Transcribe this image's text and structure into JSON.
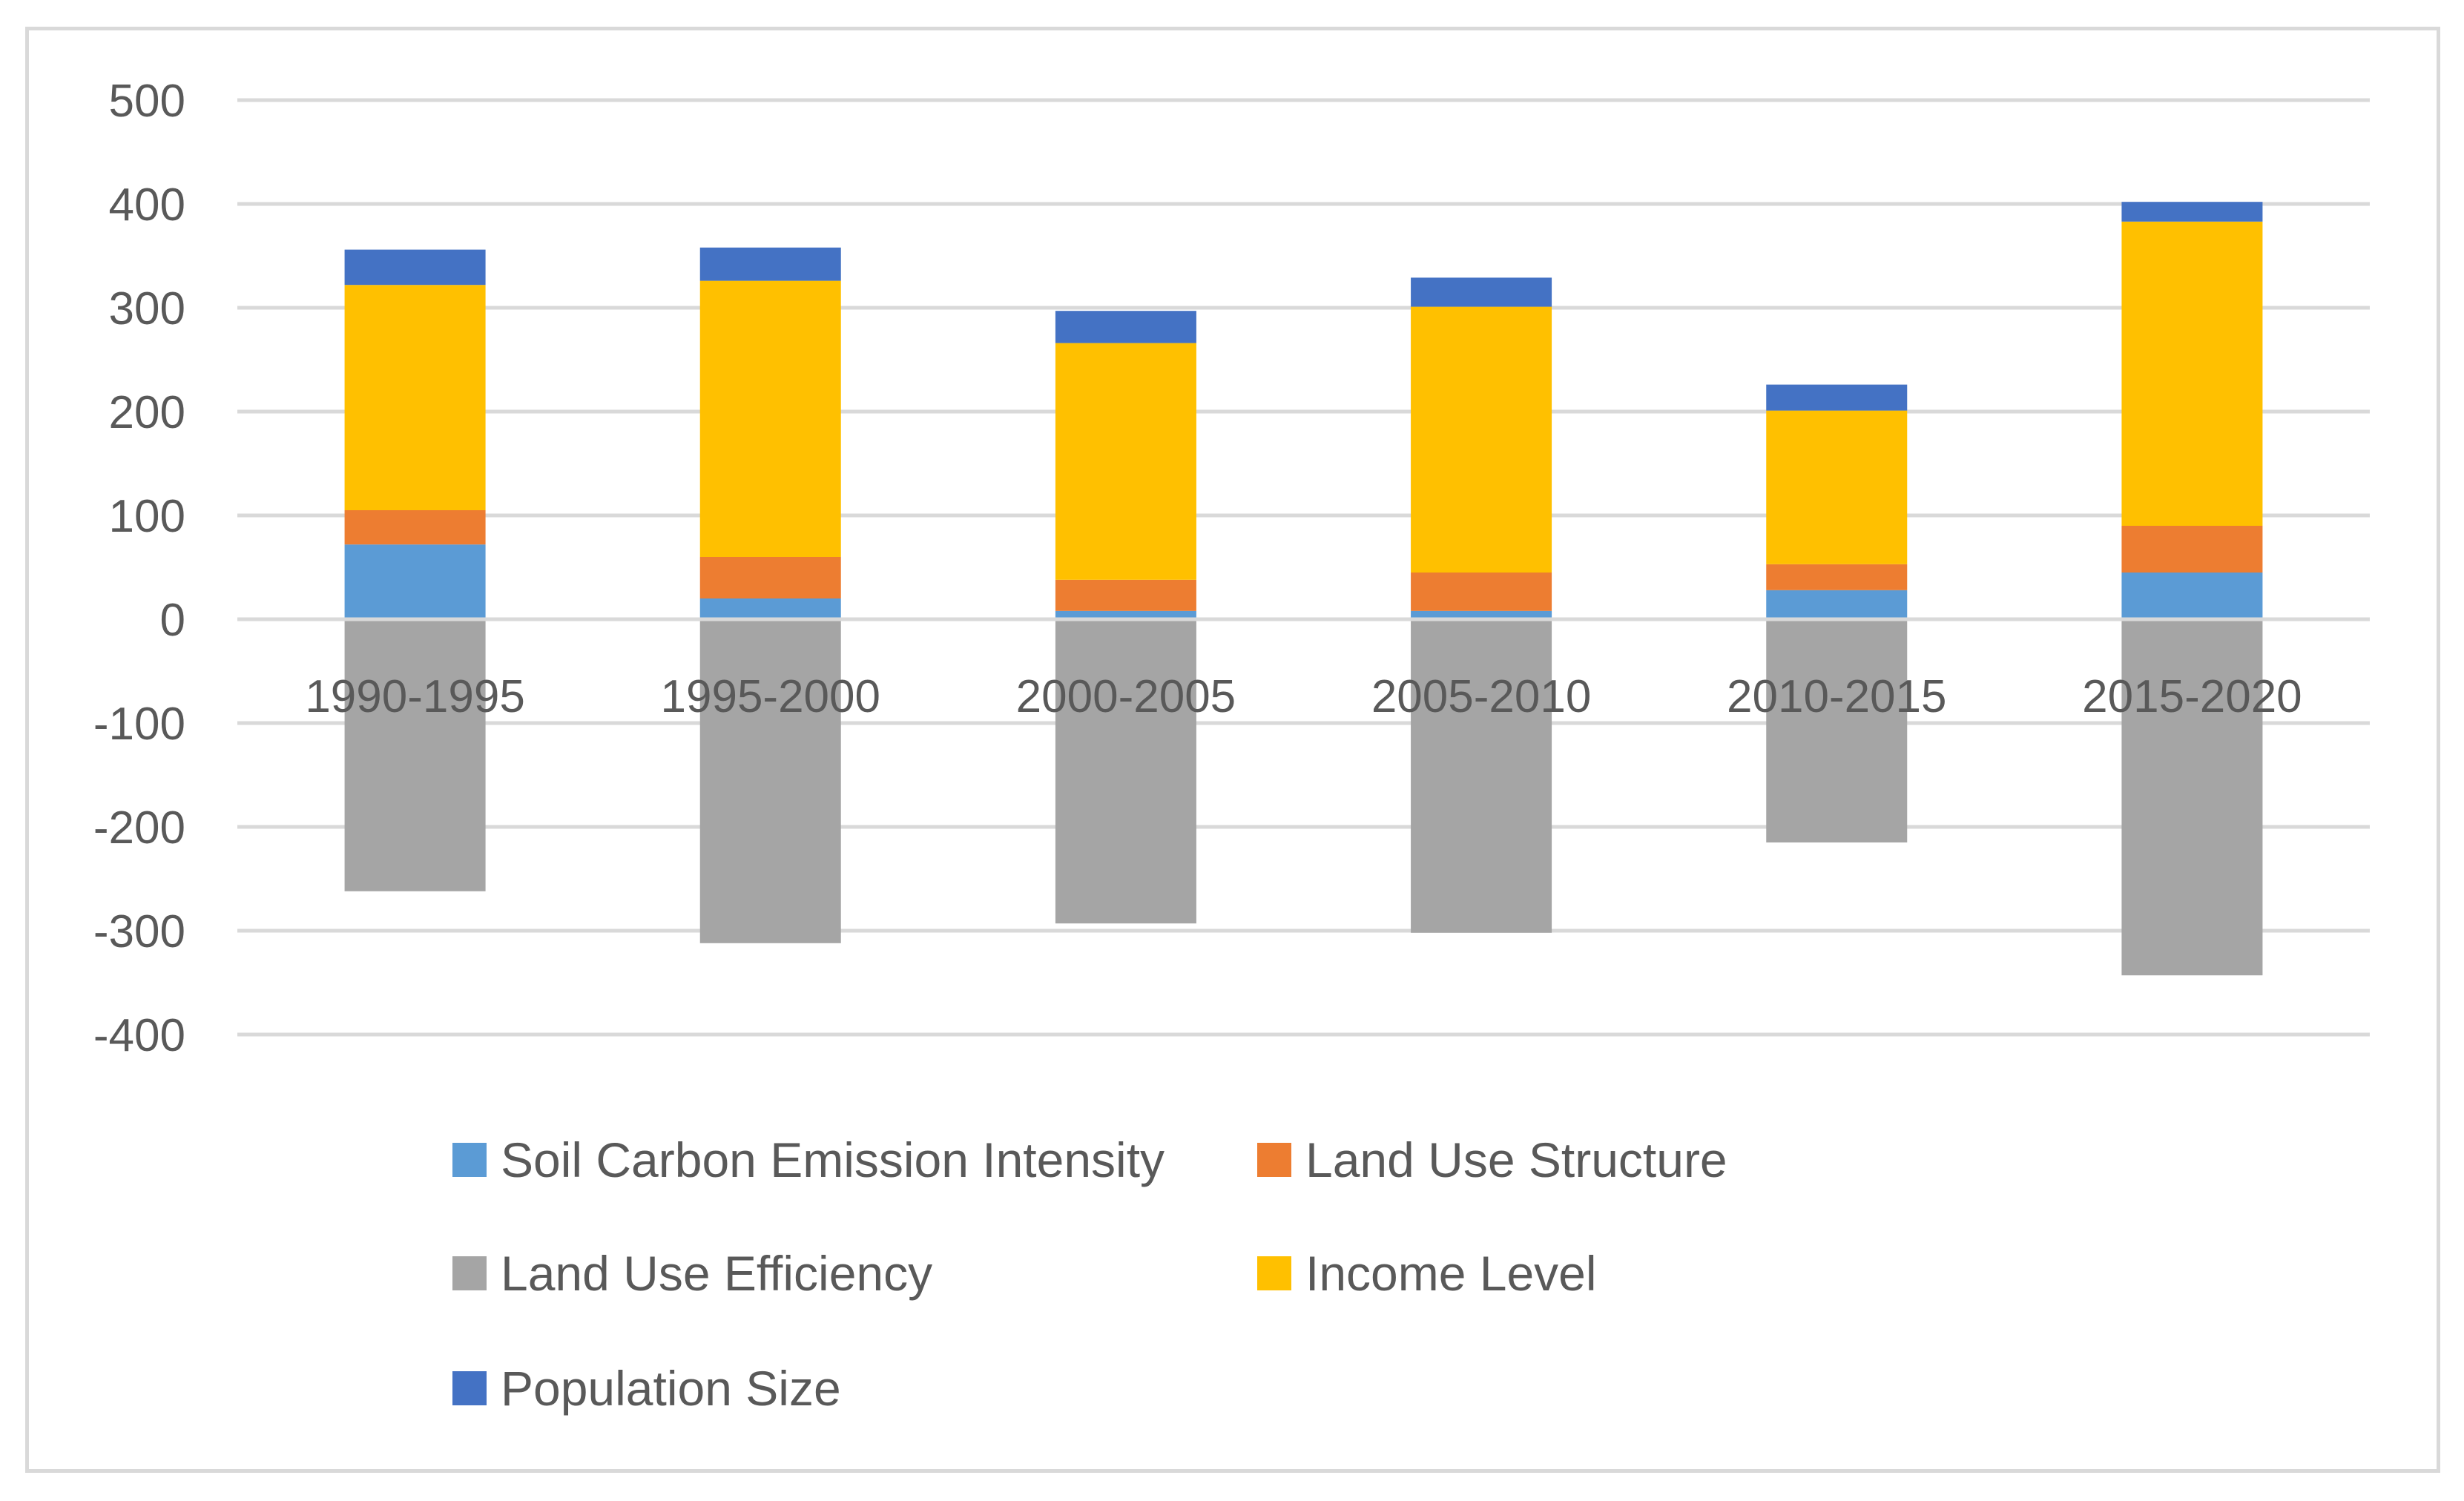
{
  "chart_data": {
    "type": "bar",
    "stacked": true,
    "title": "",
    "xlabel": "",
    "ylabel": "",
    "ylim": [
      -400,
      500
    ],
    "yticks": [
      500,
      400,
      300,
      200,
      100,
      0,
      -100,
      -200,
      -300,
      -400
    ],
    "ytick_labels": [
      "500",
      "400",
      "300",
      "200",
      "100",
      "0",
      "-100",
      "-200",
      "-300",
      "-400"
    ],
    "grid": true,
    "legend_position": "bottom",
    "categories": [
      "1990-1995",
      "1995-2000",
      "2000-2005",
      "2005-2010",
      "2010-2015",
      "2015-2020"
    ],
    "series": [
      {
        "name": "Soil Carbon Emission Intensity",
        "color": "#5b9bd5",
        "values": [
          72,
          20,
          8,
          8,
          28,
          45
        ]
      },
      {
        "name": "Land Use Structure",
        "color": "#ed7d31",
        "values": [
          33,
          40,
          30,
          37,
          25,
          45
        ]
      },
      {
        "name": "Land Use Efficiency",
        "color": "#a5a5a5",
        "values": [
          -262,
          -312,
          -293,
          -302,
          -215,
          -343
        ]
      },
      {
        "name": "Income Level",
        "color": "#ffc000",
        "values": [
          217,
          266,
          228,
          256,
          148,
          293
        ]
      },
      {
        "name": "Population Size",
        "color": "#4472c4",
        "values": [
          34,
          32,
          31,
          28,
          25,
          19
        ]
      }
    ]
  }
}
